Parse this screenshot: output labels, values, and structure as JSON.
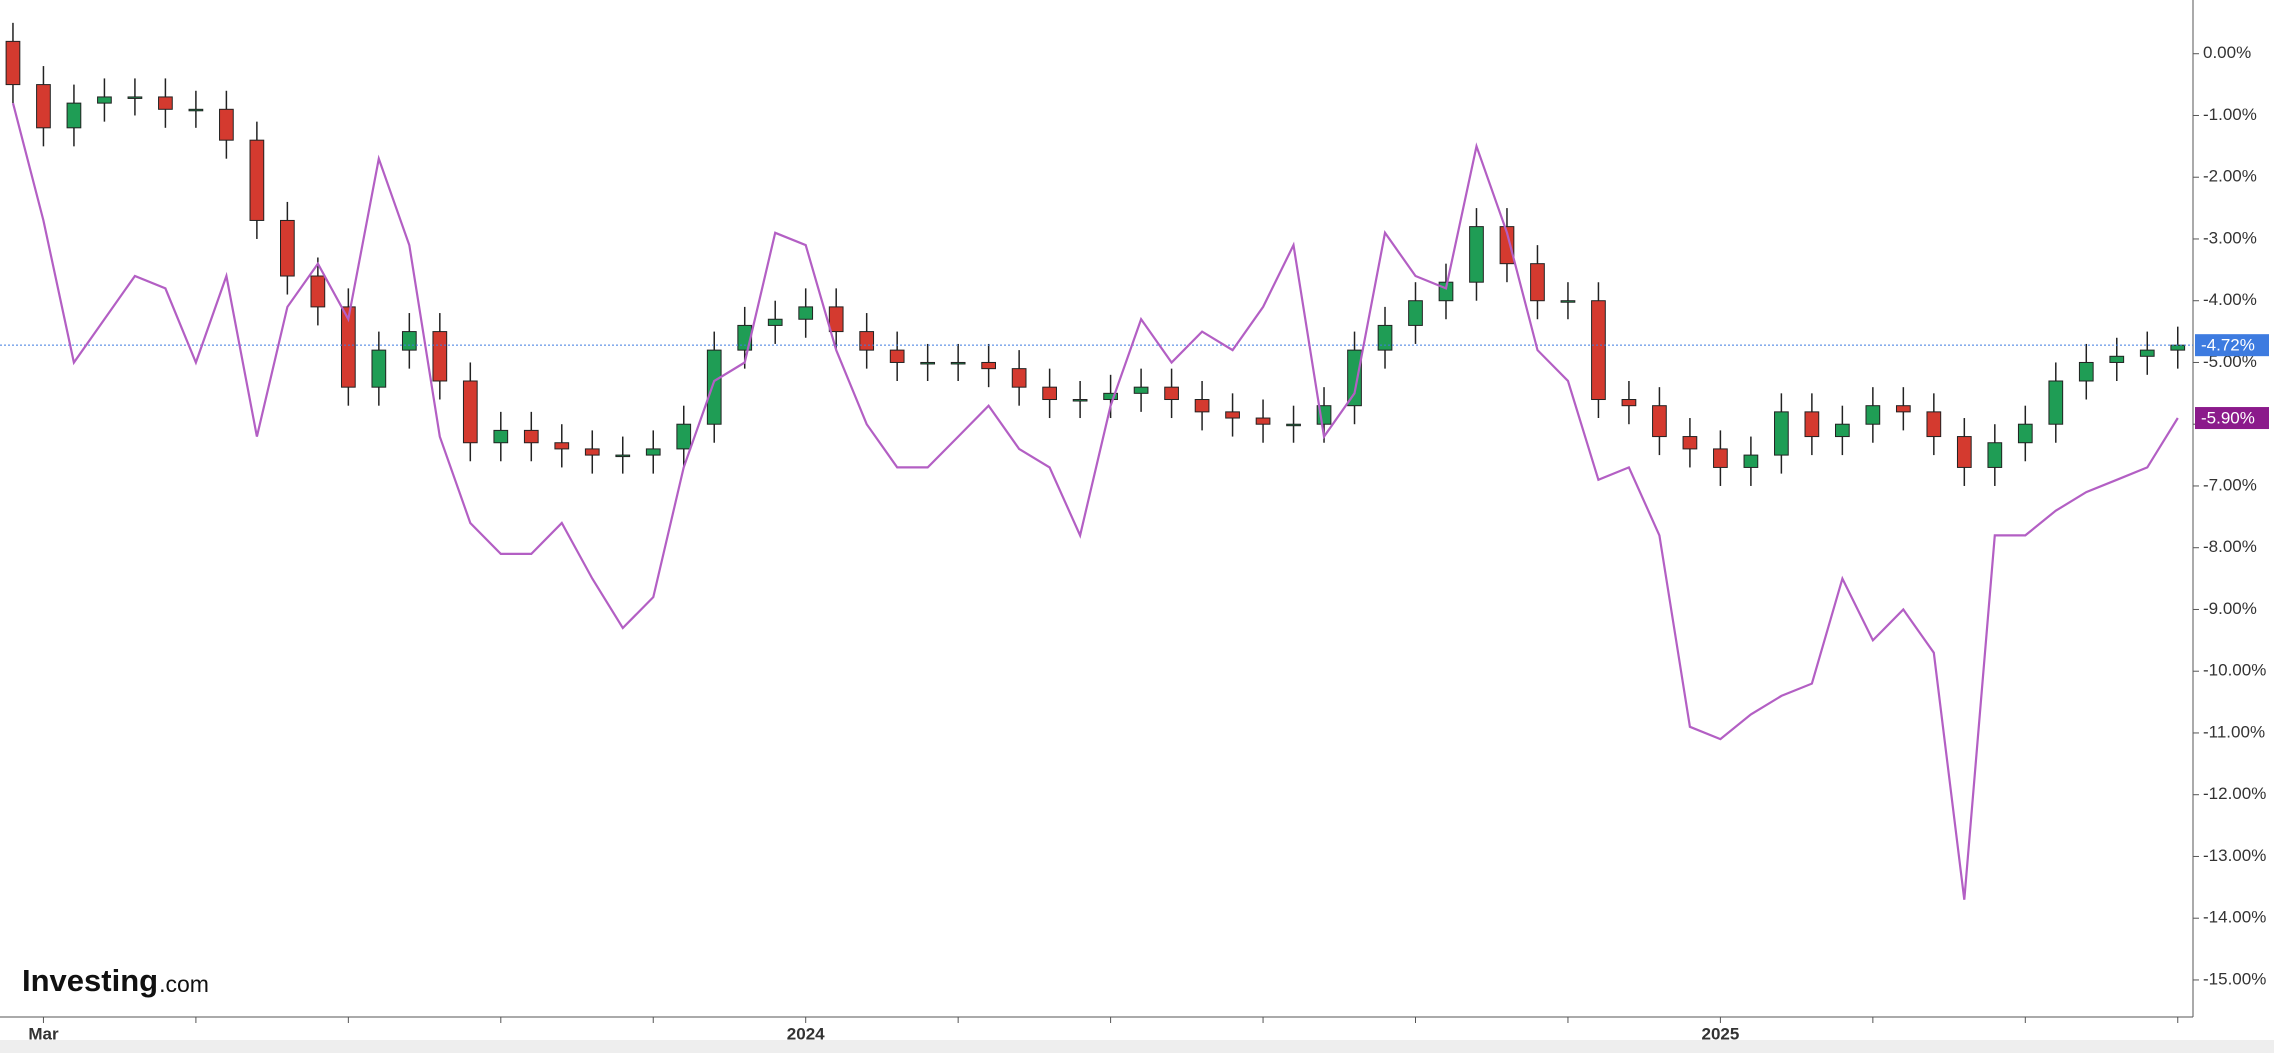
{
  "chart_data": {
    "type": "candlestick",
    "watermark": {
      "brand": "Investing",
      "suffix": ".com"
    },
    "x": [
      -0.4,
      0,
      0.4,
      0.8,
      1.2,
      1.6,
      2,
      2.4,
      2.8,
      3.2,
      3.6,
      4,
      4.4,
      4.8,
      5.2,
      5.6,
      6,
      6.4,
      6.8,
      7.2,
      7.6,
      8,
      8.4,
      8.8,
      9.2,
      9.6,
      10,
      10.4,
      10.8,
      11.2,
      11.6,
      12,
      12.4,
      12.8,
      13.2,
      13.6,
      14,
      14.4,
      14.8,
      15.2,
      15.6,
      16,
      16.4,
      16.8,
      17.2,
      17.6,
      18,
      18.4,
      18.8,
      19.2,
      19.6,
      20,
      20.4,
      20.8,
      21.2,
      21.6,
      22,
      22.4,
      22.8,
      23.2,
      23.6,
      24,
      24.4,
      24.8,
      25.2,
      25.6,
      26,
      26.4,
      26.8,
      27.2,
      27.6,
      28
    ],
    "xlim": [
      -0.57,
      28.2
    ],
    "xticks": [
      {
        "value": 0,
        "label": "Mar"
      },
      {
        "value": 10,
        "label": "2024"
      },
      {
        "value": 22,
        "label": "2025"
      }
    ],
    "xminor_ticks": [
      2,
      4,
      6,
      8,
      12,
      14,
      16,
      18,
      20,
      24,
      26,
      28
    ],
    "ylim": [
      -15.6,
      0.87
    ],
    "yticks": [
      {
        "value": 0,
        "label": "0.00%"
      },
      {
        "value": -1,
        "label": "-1.00%"
      },
      {
        "value": -2,
        "label": "-2.00%"
      },
      {
        "value": -3,
        "label": "-3.00%"
      },
      {
        "value": -4,
        "label": "-4.00%"
      },
      {
        "value": -5,
        "label": "-5.00%"
      },
      {
        "value": -6,
        "label": "-6.00%"
      },
      {
        "value": -7,
        "label": "-7.00%"
      },
      {
        "value": -8,
        "label": "-8.00%"
      },
      {
        "value": -9,
        "label": "-9.00%"
      },
      {
        "value": -10,
        "label": "-10.00%"
      },
      {
        "value": -11,
        "label": "-11.00%"
      },
      {
        "value": -12,
        "label": "-12.00%"
      },
      {
        "value": -13,
        "label": "-13.00%"
      },
      {
        "value": -14,
        "label": "-14.00%"
      },
      {
        "value": -15,
        "label": "-15.00%"
      }
    ],
    "series": [
      {
        "type": "candlestick",
        "up_color": "#1f9d55",
        "down_color": "#d43a2f",
        "last_color": "#3d7be0",
        "last_value_label": "-4.72%",
        "open": [
          0.2,
          -0.5,
          -1.2,
          -0.8,
          -0.7,
          -0.7,
          -0.9,
          -0.9,
          -1.4,
          -2.7,
          -3.6,
          -4.1,
          -5.4,
          -4.8,
          -4.5,
          -5.3,
          -6.3,
          -6.1,
          -6.3,
          -6.4,
          -6.5,
          -6.5,
          -6.4,
          -6.0,
          -4.8,
          -4.4,
          -4.3,
          -4.1,
          -4.5,
          -4.8,
          -5.0,
          -5.0,
          -5.0,
          -5.1,
          -5.4,
          -5.6,
          -5.6,
          -5.5,
          -5.4,
          -5.6,
          -5.8,
          -5.9,
          -6.0,
          -6.0,
          -5.7,
          -4.8,
          -4.4,
          -4.0,
          -3.7,
          -2.8,
          -3.4,
          -4.0,
          -4.0,
          -5.6,
          -5.7,
          -6.2,
          -6.4,
          -6.7,
          -6.5,
          -5.8,
          -6.2,
          -6.0,
          -5.7,
          -5.8,
          -6.2,
          -6.7,
          -6.3,
          -6.0,
          -5.3,
          -5.0,
          -4.9,
          -4.8
        ],
        "high": [
          0.5,
          -0.2,
          -0.5,
          -0.4,
          -0.4,
          -0.4,
          -0.6,
          -0.6,
          -1.1,
          -2.4,
          -3.3,
          -3.8,
          -4.5,
          -4.2,
          -4.2,
          -5.0,
          -5.8,
          -5.8,
          -6.0,
          -6.1,
          -6.2,
          -6.1,
          -5.7,
          -4.5,
          -4.1,
          -4.0,
          -3.8,
          -3.8,
          -4.2,
          -4.5,
          -4.7,
          -4.7,
          -4.7,
          -4.8,
          -5.1,
          -5.3,
          -5.2,
          -5.1,
          -5.1,
          -5.3,
          -5.5,
          -5.6,
          -5.7,
          -5.4,
          -4.5,
          -4.1,
          -3.7,
          -3.4,
          -2.5,
          -2.5,
          -3.1,
          -3.7,
          -3.7,
          -5.3,
          -5.4,
          -5.9,
          -6.1,
          -6.2,
          -5.5,
          -5.5,
          -5.7,
          -5.4,
          -5.4,
          -5.5,
          -5.9,
          -6.0,
          -5.7,
          -5.0,
          -4.7,
          -4.6,
          -4.5,
          -4.42
        ],
        "low": [
          -0.8,
          -1.5,
          -1.5,
          -1.1,
          -1.0,
          -1.2,
          -1.2,
          -1.7,
          -3.0,
          -3.9,
          -4.4,
          -5.7,
          -5.7,
          -5.1,
          -5.6,
          -6.6,
          -6.6,
          -6.6,
          -6.7,
          -6.8,
          -6.8,
          -6.8,
          -6.7,
          -6.3,
          -5.1,
          -4.7,
          -4.6,
          -4.8,
          -5.1,
          -5.3,
          -5.3,
          -5.3,
          -5.4,
          -5.7,
          -5.9,
          -5.9,
          -5.9,
          -5.8,
          -5.9,
          -6.1,
          -6.2,
          -6.3,
          -6.3,
          -6.3,
          -6.0,
          -5.1,
          -4.7,
          -4.3,
          -4.0,
          -3.7,
          -4.3,
          -4.3,
          -5.9,
          -6.0,
          -6.5,
          -6.7,
          -7.0,
          -7.0,
          -6.8,
          -6.5,
          -6.5,
          -6.3,
          -6.1,
          -6.5,
          -7.0,
          -7.0,
          -6.6,
          -6.3,
          -5.6,
          -5.3,
          -5.2,
          -5.1
        ],
        "close": [
          -0.5,
          -1.2,
          -0.8,
          -0.7,
          -0.7,
          -0.9,
          -0.9,
          -1.4,
          -2.7,
          -3.6,
          -4.1,
          -5.4,
          -4.8,
          -4.5,
          -5.3,
          -6.3,
          -6.1,
          -6.3,
          -6.4,
          -6.5,
          -6.5,
          -6.4,
          -6.0,
          -4.8,
          -4.4,
          -4.3,
          -4.1,
          -4.5,
          -4.8,
          -5.0,
          -5.0,
          -5.0,
          -5.1,
          -5.4,
          -5.6,
          -5.6,
          -5.5,
          -5.4,
          -5.6,
          -5.8,
          -5.9,
          -6.0,
          -6.0,
          -5.7,
          -4.8,
          -4.4,
          -4.0,
          -3.7,
          -2.8,
          -3.4,
          -4.0,
          -4.0,
          -5.6,
          -5.7,
          -6.2,
          -6.4,
          -6.7,
          -6.5,
          -5.8,
          -6.2,
          -6.0,
          -5.7,
          -5.8,
          -6.2,
          -6.7,
          -6.3,
          -6.0,
          -5.3,
          -5.0,
          -4.9,
          -4.8,
          -4.72
        ]
      },
      {
        "type": "line",
        "color": "#b35fc4",
        "last_color": "#8b1a8b",
        "last_value_label": "-5.90%",
        "values": [
          -0.8,
          -2.7,
          -5.0,
          -4.3,
          -3.6,
          -3.8,
          -5.0,
          -3.6,
          -6.2,
          -4.1,
          -3.4,
          -4.3,
          -1.7,
          -3.1,
          -6.2,
          -7.6,
          -8.1,
          -8.1,
          -7.6,
          -8.5,
          -9.3,
          -8.8,
          -6.7,
          -5.3,
          -5.0,
          -2.9,
          -3.1,
          -4.8,
          -6.0,
          -6.7,
          -6.7,
          -6.2,
          -5.7,
          -6.4,
          -6.7,
          -7.8,
          -5.7,
          -4.3,
          -5.0,
          -4.5,
          -4.8,
          -4.1,
          -3.1,
          -6.2,
          -5.5,
          -2.9,
          -3.6,
          -3.8,
          -1.5,
          -2.9,
          -4.8,
          -5.3,
          -6.9,
          -6.7,
          -7.8,
          -10.9,
          -11.1,
          -10.7,
          -10.4,
          -10.2,
          -8.5,
          -9.5,
          -9.0,
          -9.7,
          -13.7,
          -7.8,
          -7.8,
          -7.4,
          -7.1,
          -6.9,
          -6.7,
          -5.9
        ]
      }
    ]
  }
}
